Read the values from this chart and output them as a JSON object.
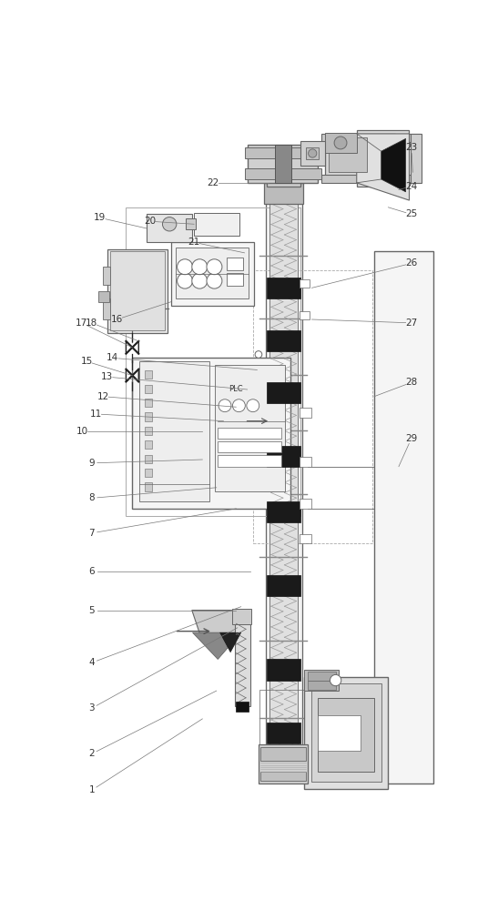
{
  "fig_width": 5.36,
  "fig_height": 10.0,
  "dpi": 100,
  "bg_color": "#ffffff",
  "lc": "#666666",
  "dc": "#222222",
  "fc_light": "#e8e8e8",
  "fc_med": "#cccccc",
  "fc_dark": "#111111",
  "label_fs": 7.5,
  "label_color": "#333333"
}
